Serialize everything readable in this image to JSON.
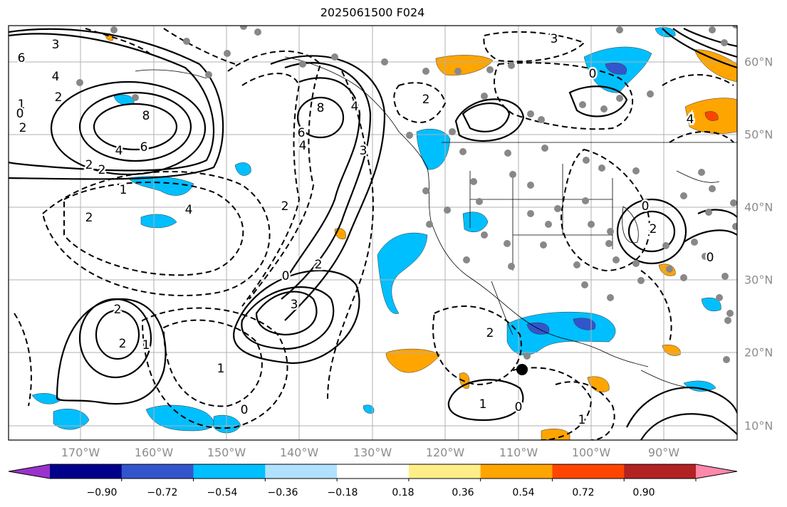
{
  "title": "2025061500 F024",
  "map": {
    "lon_labels": [
      "170°W",
      "160°W",
      "150°W",
      "140°W",
      "130°W",
      "120°W",
      "110°W",
      "100°W",
      "90°W"
    ],
    "lat_labels": [
      "60°N",
      "50°N",
      "40°N",
      "30°N",
      "20°N",
      "10°N"
    ],
    "contour_labels": [
      "3",
      "6",
      "4",
      "2",
      "1",
      "0",
      "2",
      "8",
      "6",
      "4",
      "2",
      "1",
      "2",
      "4",
      "2",
      "8",
      "4",
      "6",
      "4",
      "3",
      "2",
      "0",
      "2",
      "3",
      "2",
      "1",
      "2",
      "1",
      "0",
      "3",
      "0",
      "2",
      "1",
      "0",
      "2",
      "4",
      "0",
      "2",
      "0",
      "1"
    ]
  },
  "colorbar": {
    "ticks": [
      "−0.90",
      "−0.72",
      "−0.54",
      "−0.36",
      "−0.18",
      "0.18",
      "0.36",
      "0.54",
      "0.72",
      "0.90"
    ],
    "colors": [
      "#9933cc",
      "#00008b",
      "#3355cc",
      "#00bfff",
      "#b0e2ff",
      "#ffffff",
      "#ffee88",
      "#ffa500",
      "#ff4500",
      "#b22222",
      "#ff88aa"
    ]
  }
}
